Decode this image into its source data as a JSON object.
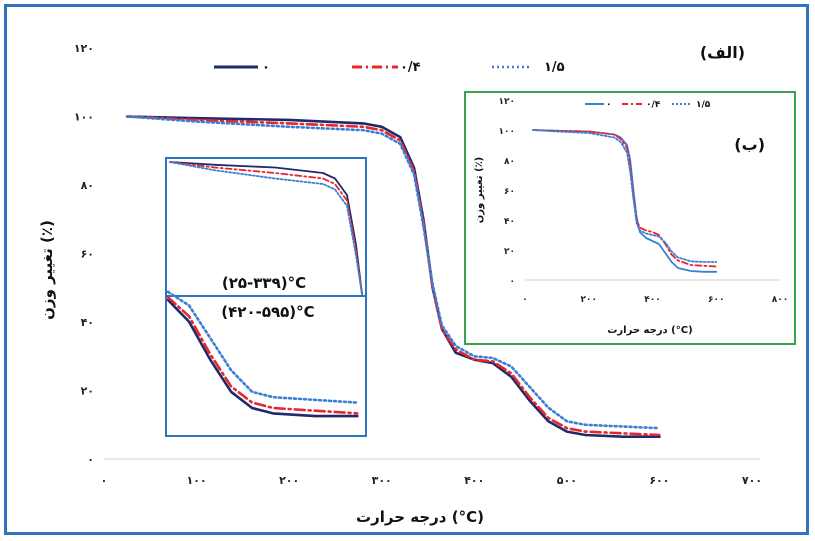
{
  "chart_data": [
    {
      "type": "line",
      "panel_label": "(الف)",
      "xlabel": "درجه حرارت (°C)",
      "ylabel": "تغییر وزن (٪)",
      "xlim": [
        0,
        700
      ],
      "ylim": [
        0,
        120
      ],
      "xticks": [
        "۰",
        "۱۰۰",
        "۲۰۰",
        "۳۰۰",
        "۴۰۰",
        "۵۰۰",
        "۶۰۰",
        "۷۰۰"
      ],
      "yticks": [
        "۰",
        "۲۰",
        "۴۰",
        "۶۰",
        "۸۰",
        "۱۰۰",
        "۱۲۰"
      ],
      "legend_position": "top",
      "series": [
        {
          "name": "۰",
          "color": "#1f2a6b",
          "style": "solid",
          "x": [
            25,
            100,
            200,
            280,
            300,
            320,
            335,
            345,
            355,
            365,
            380,
            400,
            420,
            440,
            460,
            480,
            500,
            520,
            560,
            600
          ],
          "y": [
            100,
            99.5,
            99,
            98,
            97,
            94,
            85,
            70,
            50,
            38,
            31,
            29,
            28,
            24,
            17,
            11,
            8,
            7,
            6.5,
            6.5
          ]
        },
        {
          "name": "۰/۴",
          "color": "#e8262b",
          "style": "dashdot",
          "x": [
            25,
            100,
            200,
            280,
            300,
            320,
            335,
            345,
            355,
            365,
            380,
            400,
            420,
            440,
            460,
            480,
            500,
            520,
            560,
            600
          ],
          "y": [
            100,
            99,
            98,
            97,
            96,
            93,
            84,
            69,
            50,
            38,
            32,
            29,
            28.5,
            25,
            18,
            12,
            9,
            8,
            7.5,
            7
          ]
        },
        {
          "name": "۱/۵",
          "color": "#3a7fd6",
          "style": "dotted",
          "x": [
            25,
            100,
            200,
            280,
            300,
            320,
            335,
            345,
            355,
            365,
            380,
            400,
            420,
            440,
            460,
            480,
            500,
            520,
            560,
            600
          ],
          "y": [
            100,
            98.5,
            97,
            96,
            95,
            92,
            83,
            68,
            51,
            39,
            33,
            30,
            29.5,
            27,
            21,
            15,
            11,
            10,
            9.5,
            9
          ]
        }
      ],
      "zoom_inset": {
        "label_top": "(۲۵-۳۳۹)°C",
        "label_bottom": "(۴۲۰-۵۹۵)°C"
      }
    },
    {
      "type": "line",
      "panel_label": "(ب)",
      "xlabel": "درجه حرارت (°C)",
      "ylabel": "تغییر وزن (٪)",
      "xlim": [
        0,
        800
      ],
      "ylim": [
        0,
        120
      ],
      "xticks": [
        "۰",
        "۲۰۰",
        "۴۰۰",
        "۶۰۰",
        "۸۰۰"
      ],
      "yticks": [
        "۰",
        "۲۰",
        "۴۰",
        "۶۰",
        "۸۰",
        "۱۰۰",
        "۱۲۰"
      ],
      "legend_position": "top",
      "series": [
        {
          "name": "۰",
          "color": "#3a7fd6",
          "style": "solid",
          "x": [
            25,
            100,
            200,
            280,
            300,
            320,
            330,
            340,
            350,
            360,
            380,
            400,
            420,
            440,
            460,
            480,
            520,
            560,
            600
          ],
          "y": [
            100,
            99.5,
            99,
            97,
            95,
            90,
            80,
            60,
            42,
            32,
            28,
            26,
            24,
            18,
            12,
            8,
            6,
            5.5,
            5.5
          ]
        },
        {
          "name": "۰/۴",
          "color": "#e8262b",
          "style": "dashdot",
          "x": [
            25,
            100,
            200,
            280,
            300,
            320,
            330,
            340,
            350,
            360,
            380,
            400,
            420,
            440,
            460,
            480,
            520,
            560,
            600
          ],
          "y": [
            100,
            99.5,
            99,
            97,
            94,
            88,
            76,
            56,
            40,
            35,
            33,
            32,
            30,
            24,
            17,
            13,
            10,
            9.5,
            9
          ]
        },
        {
          "name": "۱/۵",
          "color": "#3a7fd6",
          "style": "dotted",
          "x": [
            25,
            100,
            200,
            280,
            300,
            320,
            330,
            340,
            350,
            360,
            380,
            400,
            420,
            440,
            460,
            480,
            520,
            560,
            600
          ],
          "y": [
            100,
            99,
            98,
            95,
            92,
            85,
            72,
            54,
            38,
            33,
            31,
            30,
            29,
            25,
            19,
            15,
            12.5,
            12,
            12
          ]
        }
      ]
    }
  ]
}
